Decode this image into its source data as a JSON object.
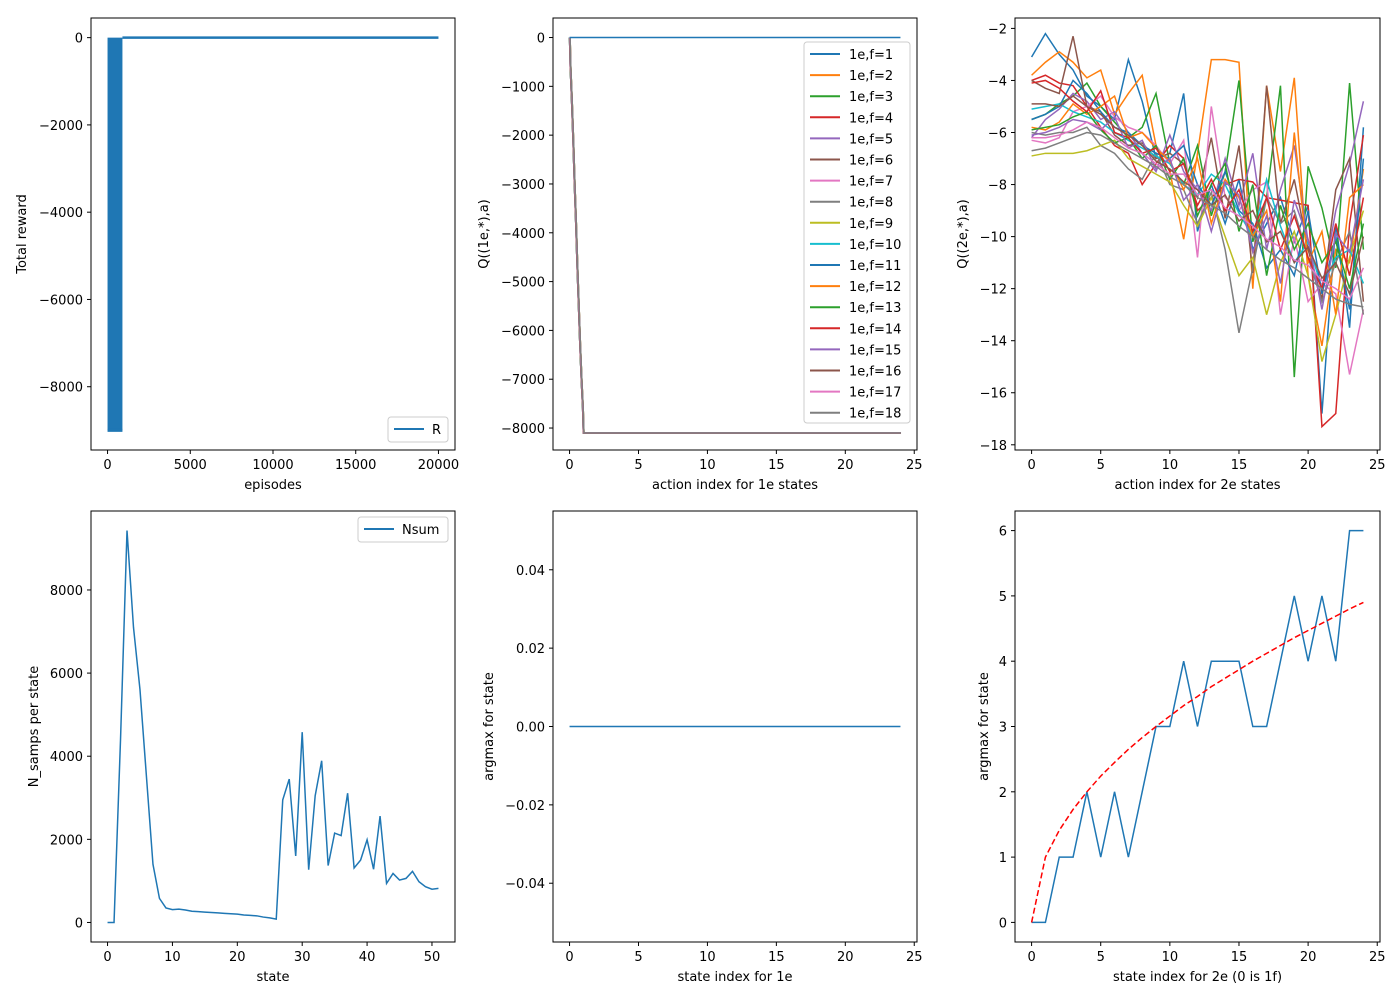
{
  "palette": [
    "#1f77b4",
    "#ff7f0e",
    "#2ca02c",
    "#d62728",
    "#9467bd",
    "#8c564b",
    "#e377c2",
    "#7f7f7f",
    "#bcbd22",
    "#17becf"
  ],
  "chart_data": [
    {
      "type": "line",
      "xlabel": "episodes",
      "ylabel": "Total reward",
      "xlim": [
        -1000,
        21000
      ],
      "ylim": [
        -9450,
        450
      ],
      "xticks": [
        0,
        5000,
        10000,
        15000,
        20000
      ],
      "yticks": [
        0,
        -2000,
        -4000,
        -6000,
        -8000
      ],
      "xtick_labels": [
        "0",
        "5000",
        "10000",
        "15000",
        "20000"
      ],
      "ytick_labels": [
        "0",
        "−2000",
        "−4000",
        "−6000",
        "−8000"
      ],
      "legend_position": "lower right",
      "series": [
        {
          "name": "R",
          "color": "#1f77b4",
          "noisy_region": {
            "x_from": 0,
            "x_to": 900,
            "y_low": -9000,
            "y_high": 0
          },
          "x": [
            900,
            20000
          ],
          "y": [
            0,
            0
          ]
        }
      ]
    },
    {
      "type": "line",
      "xlabel": "action index for 1e states",
      "ylabel": "Q((1e,*),a)",
      "xlim": [
        -1.2,
        25.2
      ],
      "ylim": [
        -8450,
        400
      ],
      "xticks": [
        0,
        5,
        10,
        15,
        20,
        25
      ],
      "yticks": [
        0,
        -1000,
        -2000,
        -3000,
        -4000,
        -5000,
        -6000,
        -7000,
        -8000
      ],
      "xtick_labels": [
        "0",
        "5",
        "10",
        "15",
        "20",
        "25"
      ],
      "ytick_labels": [
        "0",
        "−1000",
        "−2000",
        "−3000",
        "−4000",
        "−5000",
        "−6000",
        "−7000",
        "−8000"
      ],
      "legend_position": "upper right",
      "legend": [
        "1e,f=1",
        "1e,f=2",
        "1e,f=3",
        "1e,f=4",
        "1e,f=5",
        "1e,f=6",
        "1e,f=7",
        "1e,f=8",
        "1e,f=9",
        "1e,f=10",
        "1e,f=11",
        "1e,f=12",
        "1e,f=13",
        "1e,f=14",
        "1e,f=15",
        "1e,f=16",
        "1e,f=17",
        "1e,f=18"
      ],
      "series_shape": {
        "x": [
          0,
          0.05,
          0.15,
          0.25,
          0.35,
          0.45,
          0.55,
          0.65,
          0.75,
          0.85,
          0.95,
          1,
          24
        ],
        "y": [
          0,
          -600,
          -1300,
          -2100,
          -3000,
          -3800,
          -4700,
          -5500,
          -6300,
          -7000,
          -7600,
          -8100,
          -8100
        ]
      },
      "flat_series": {
        "x": [
          0,
          24
        ],
        "y": [
          0,
          0
        ]
      }
    },
    {
      "type": "line",
      "xlabel": "action index for 2e states",
      "ylabel": "Q((2e,*),a)",
      "xlim": [
        -1.2,
        25.2
      ],
      "ylim": [
        -18.2,
        -1.6
      ],
      "xticks": [
        0,
        5,
        10,
        15,
        20,
        25
      ],
      "yticks": [
        -2,
        -4,
        -6,
        -8,
        -10,
        -12,
        -14,
        -16,
        -18
      ],
      "xtick_labels": [
        "0",
        "5",
        "10",
        "15",
        "20",
        "25"
      ],
      "ytick_labels": [
        "−2",
        "−4",
        "−6",
        "−8",
        "−10",
        "−12",
        "−14",
        "−16",
        "−18"
      ],
      "series": [
        {
          "color": "#1f77b4",
          "y": [
            -3.1,
            -2.2,
            -3.0,
            -3.6,
            -4.6,
            -5.0,
            -5.5,
            -3.2,
            -4.8,
            -7.0,
            -6.8,
            -4.5,
            -9.8,
            -8.0,
            -9.5,
            -7.8,
            -10.5,
            -9.5,
            -8.5,
            -10.2,
            -8.8,
            -16.8,
            -9.5,
            -13.5,
            -5.8
          ]
        },
        {
          "color": "#ff7f0e",
          "y": [
            -3.8,
            -3.3,
            -2.9,
            -3.3,
            -3.9,
            -3.6,
            -5.3,
            -4.5,
            -3.8,
            -6.5,
            -7.5,
            -10.1,
            -6.8,
            -3.2,
            -3.2,
            -3.3,
            -12.0,
            -4.2,
            -7.5,
            -3.9,
            -11.5,
            -14.2,
            -10.5,
            -11.0,
            -7.4
          ]
        },
        {
          "color": "#2ca02c",
          "y": [
            -5.5,
            -5.3,
            -4.9,
            -4.6,
            -4.1,
            -5.0,
            -5.6,
            -6.2,
            -5.8,
            -4.5,
            -7.2,
            -8.0,
            -6.5,
            -9.2,
            -7.5,
            -4.0,
            -10.2,
            -8.5,
            -4.2,
            -15.4,
            -7.3,
            -8.9,
            -11.2,
            -4.1,
            -10.5
          ]
        },
        {
          "color": "#d62728",
          "y": [
            -4.0,
            -3.8,
            -4.1,
            -4.2,
            -5.0,
            -5.8,
            -6.5,
            -6.8,
            -8.0,
            -7.2,
            -6.5,
            -7.0,
            -9.0,
            -8.5,
            -8.0,
            -7.8,
            -7.9,
            -8.5,
            -8.6,
            -8.7,
            -8.8,
            -17.3,
            -16.8,
            -9.5,
            -6.1
          ]
        },
        {
          "color": "#9467bd",
          "y": [
            -6.2,
            -5.5,
            -5.1,
            -4.5,
            -4.8,
            -5.5,
            -5.2,
            -6.0,
            -6.8,
            -7.5,
            -6.1,
            -7.5,
            -8.2,
            -9.0,
            -7.0,
            -8.8,
            -6.8,
            -10.5,
            -8.2,
            -6.5,
            -10.2,
            -12.0,
            -9.0,
            -7.2,
            -4.8
          ]
        },
        {
          "color": "#8c564b",
          "y": [
            -4.0,
            -4.3,
            -4.5,
            -2.3,
            -5.0,
            -5.2,
            -6.1,
            -6.5,
            -6.4,
            -7.0,
            -6.8,
            -7.2,
            -8.5,
            -6.2,
            -9.3,
            -6.5,
            -11.4,
            -4.2,
            -9.5,
            -7.8,
            -10.5,
            -12.4,
            -8.2,
            -7.0,
            -12.5
          ]
        },
        {
          "color": "#e377c2",
          "y": [
            -6.3,
            -6.4,
            -6.2,
            -5.2,
            -5.0,
            -4.6,
            -5.4,
            -5.8,
            -6.0,
            -6.5,
            -7.2,
            -6.3,
            -10.8,
            -5.0,
            -8.5,
            -9.0,
            -8.2,
            -7.9,
            -13.0,
            -10.0,
            -12.5,
            -11.8,
            -12.2,
            -15.3,
            -12.8
          ]
        },
        {
          "color": "#7f7f7f",
          "y": [
            -6.0,
            -6.1,
            -6.0,
            -6.0,
            -5.8,
            -6.5,
            -6.8,
            -7.4,
            -7.8,
            -6.8,
            -8.0,
            -8.2,
            -9.5,
            -8.3,
            -10.5,
            -13.7,
            -11.2,
            -8.5,
            -9.5,
            -9.0,
            -10.8,
            -12.5,
            -11.0,
            -9.8,
            -13.0
          ]
        },
        {
          "color": "#bcbd22",
          "y": [
            -6.9,
            -6.8,
            -6.8,
            -6.8,
            -6.7,
            -6.5,
            -6.3,
            -7.0,
            -7.3,
            -7.6,
            -7.9,
            -8.8,
            -9.6,
            -8.5,
            -10.0,
            -11.5,
            -10.8,
            -13.0,
            -11.0,
            -9.8,
            -11.5,
            -14.8,
            -13.0,
            -10.8,
            -9.0
          ]
        },
        {
          "color": "#17becf",
          "y": [
            -5.1,
            -5.0,
            -4.9,
            -5.2,
            -5.4,
            -5.6,
            -6.0,
            -6.3,
            -6.6,
            -6.9,
            -7.2,
            -8.0,
            -8.4,
            -7.6,
            -8.0,
            -9.1,
            -10.0,
            -7.8,
            -9.6,
            -11.0,
            -10.2,
            -12.0,
            -10.8,
            -10.5,
            -11.8
          ]
        },
        {
          "color": "#1f77b4",
          "y": [
            -5.5,
            -5.3,
            -5.0,
            -4.0,
            -4.5,
            -5.2,
            -5.8,
            -6.0,
            -6.5,
            -6.8,
            -7.0,
            -6.5,
            -8.0,
            -8.8,
            -7.5,
            -9.0,
            -9.5,
            -11.2,
            -10.5,
            -11.5,
            -9.0,
            -12.2,
            -10.0,
            -12.8,
            -7.0
          ]
        },
        {
          "color": "#ff7f0e",
          "y": [
            -5.8,
            -5.9,
            -5.6,
            -4.9,
            -5.3,
            -5.0,
            -4.6,
            -6.2,
            -6.0,
            -6.6,
            -7.1,
            -8.2,
            -7.0,
            -9.5,
            -7.8,
            -8.5,
            -10.0,
            -9.0,
            -12.5,
            -6.0,
            -11.0,
            -9.8,
            -13.0,
            -8.5,
            -8.0
          ]
        },
        {
          "color": "#2ca02c",
          "y": [
            -5.9,
            -5.8,
            -5.7,
            -5.4,
            -5.2,
            -5.9,
            -6.4,
            -6.2,
            -7.0,
            -6.5,
            -7.8,
            -7.0,
            -9.2,
            -8.0,
            -7.2,
            -9.8,
            -8.0,
            -11.5,
            -8.8,
            -10.5,
            -9.5,
            -11.0,
            -10.2,
            -12.0,
            -9.5
          ]
        },
        {
          "color": "#d62728",
          "y": [
            -4.1,
            -4.0,
            -4.3,
            -4.8,
            -5.2,
            -4.4,
            -6.0,
            -6.2,
            -6.8,
            -6.6,
            -7.5,
            -7.2,
            -8.8,
            -7.8,
            -9.0,
            -8.2,
            -9.8,
            -8.5,
            -10.5,
            -9.2,
            -10.8,
            -12.0,
            -9.5,
            -11.5,
            -8.5
          ]
        },
        {
          "color": "#9467bd",
          "y": [
            -6.1,
            -6.0,
            -5.8,
            -5.5,
            -5.6,
            -5.9,
            -5.4,
            -6.6,
            -6.3,
            -7.4,
            -7.0,
            -8.6,
            -8.0,
            -9.8,
            -7.9,
            -8.4,
            -10.6,
            -9.2,
            -11.8,
            -8.6,
            -10.1,
            -12.8,
            -9.9,
            -10.6,
            -7.8
          ]
        },
        {
          "color": "#8c564b",
          "y": [
            -4.9,
            -4.9,
            -5.0,
            -4.6,
            -5.0,
            -5.3,
            -5.8,
            -6.1,
            -6.5,
            -7.1,
            -7.4,
            -7.9,
            -8.2,
            -8.8,
            -8.4,
            -9.4,
            -9.0,
            -10.2,
            -9.8,
            -11.0,
            -10.4,
            -11.6,
            -11.0,
            -12.2,
            -10.0
          ]
        },
        {
          "color": "#e377c2",
          "y": [
            -6.2,
            -6.2,
            -6.1,
            -5.9,
            -5.6,
            -5.8,
            -6.2,
            -6.6,
            -6.8,
            -7.2,
            -7.6,
            -7.6,
            -8.4,
            -8.2,
            -8.9,
            -9.2,
            -9.6,
            -10.1,
            -10.4,
            -10.9,
            -11.1,
            -11.7,
            -12.0,
            -12.4,
            -11.2
          ]
        },
        {
          "color": "#7f7f7f",
          "y": [
            -6.7,
            -6.6,
            -6.4,
            -6.2,
            -6.0,
            -6.1,
            -6.4,
            -6.7,
            -7.0,
            -7.3,
            -7.7,
            -8.0,
            -8.5,
            -8.8,
            -9.1,
            -9.6,
            -10.0,
            -10.5,
            -10.9,
            -11.2,
            -11.6,
            -12.0,
            -12.4,
            -12.6,
            -12.7
          ]
        }
      ]
    },
    {
      "type": "line",
      "xlabel": "state",
      "ylabel": "N_samps per state",
      "xlim": [
        -2.55,
        53.55
      ],
      "ylim": [
        -470,
        9900
      ],
      "xticks": [
        0,
        10,
        20,
        30,
        40,
        50
      ],
      "yticks": [
        0,
        2000,
        4000,
        6000,
        8000
      ],
      "xtick_labels": [
        "0",
        "10",
        "20",
        "30",
        "40",
        "50"
      ],
      "ytick_labels": [
        "0",
        "2000",
        "4000",
        "6000",
        "8000"
      ],
      "legend_position": "upper right",
      "series": [
        {
          "name": "Nsum",
          "color": "#1f77b4",
          "x": [
            0,
            1,
            2,
            3,
            4,
            5,
            6,
            7,
            8,
            9,
            10,
            11,
            12,
            13,
            14,
            15,
            16,
            17,
            18,
            19,
            20,
            21,
            22,
            23,
            24,
            25,
            26,
            27,
            28,
            29,
            30,
            31,
            32,
            33,
            34,
            35,
            36,
            37,
            38,
            39,
            40,
            41,
            42,
            43,
            44,
            45,
            46,
            47,
            48,
            49,
            50,
            51
          ],
          "y": [
            0,
            0,
            4400,
            9430,
            7100,
            5600,
            3500,
            1400,
            580,
            350,
            310,
            320,
            300,
            270,
            260,
            250,
            240,
            230,
            220,
            210,
            200,
            180,
            170,
            160,
            130,
            110,
            80,
            2950,
            3450,
            1600,
            4580,
            1270,
            3050,
            3890,
            1370,
            2150,
            2090,
            3110,
            1310,
            1500,
            1990,
            1280,
            2560,
            940,
            1180,
            1020,
            1060,
            1230,
            980,
            860,
            800,
            820
          ]
        }
      ]
    },
    {
      "type": "line",
      "xlabel": "state index for 1e",
      "ylabel": "argmax for state",
      "xlim": [
        -1.2,
        25.2
      ],
      "ylim": [
        -0.055,
        0.055
      ],
      "xticks": [
        0,
        5,
        10,
        15,
        20,
        25
      ],
      "yticks": [
        0.04,
        0.02,
        0.0,
        -0.02,
        -0.04
      ],
      "xtick_labels": [
        "0",
        "5",
        "10",
        "15",
        "20",
        "25"
      ],
      "ytick_labels": [
        "0.04",
        "0.02",
        "0.00",
        "−0.02",
        "−0.04"
      ],
      "series": [
        {
          "color": "#1f77b4",
          "x": [
            0,
            24
          ],
          "y": [
            0,
            0
          ]
        }
      ]
    },
    {
      "type": "line",
      "xlabel": "state index for 2e (0 is 1f)",
      "ylabel": "argmax for state",
      "xlim": [
        -1.2,
        25.2
      ],
      "ylim": [
        -0.3,
        6.3
      ],
      "xticks": [
        0,
        5,
        10,
        15,
        20,
        25
      ],
      "yticks": [
        0,
        1,
        2,
        3,
        4,
        5,
        6
      ],
      "xtick_labels": [
        "0",
        "5",
        "10",
        "15",
        "20",
        "25"
      ],
      "ytick_labels": [
        "0",
        "1",
        "2",
        "3",
        "4",
        "5",
        "6"
      ],
      "series": [
        {
          "color": "#1f77b4",
          "style": "solid",
          "x": [
            0,
            1,
            2,
            3,
            4,
            5,
            6,
            7,
            8,
            9,
            10,
            11,
            12,
            13,
            14,
            15,
            16,
            17,
            18,
            19,
            20,
            21,
            22,
            23,
            24
          ],
          "y": [
            0,
            0,
            1,
            1,
            2,
            1,
            2,
            1,
            2,
            3,
            3,
            4,
            3,
            4,
            4,
            4,
            3,
            3,
            4,
            5,
            4,
            5,
            4,
            6,
            6
          ]
        },
        {
          "color": "#ff0000",
          "style": "dashed",
          "x": [
            0,
            1,
            2,
            3,
            4,
            5,
            6,
            7,
            8,
            9,
            10,
            11,
            12,
            13,
            14,
            15,
            16,
            17,
            18,
            19,
            20,
            21,
            22,
            23,
            24
          ],
          "y": [
            0,
            1.0,
            1.41,
            1.73,
            2.0,
            2.24,
            2.45,
            2.65,
            2.83,
            3.0,
            3.16,
            3.32,
            3.46,
            3.61,
            3.74,
            3.87,
            4.0,
            4.12,
            4.24,
            4.36,
            4.47,
            4.58,
            4.69,
            4.8,
            4.9
          ]
        }
      ]
    }
  ]
}
